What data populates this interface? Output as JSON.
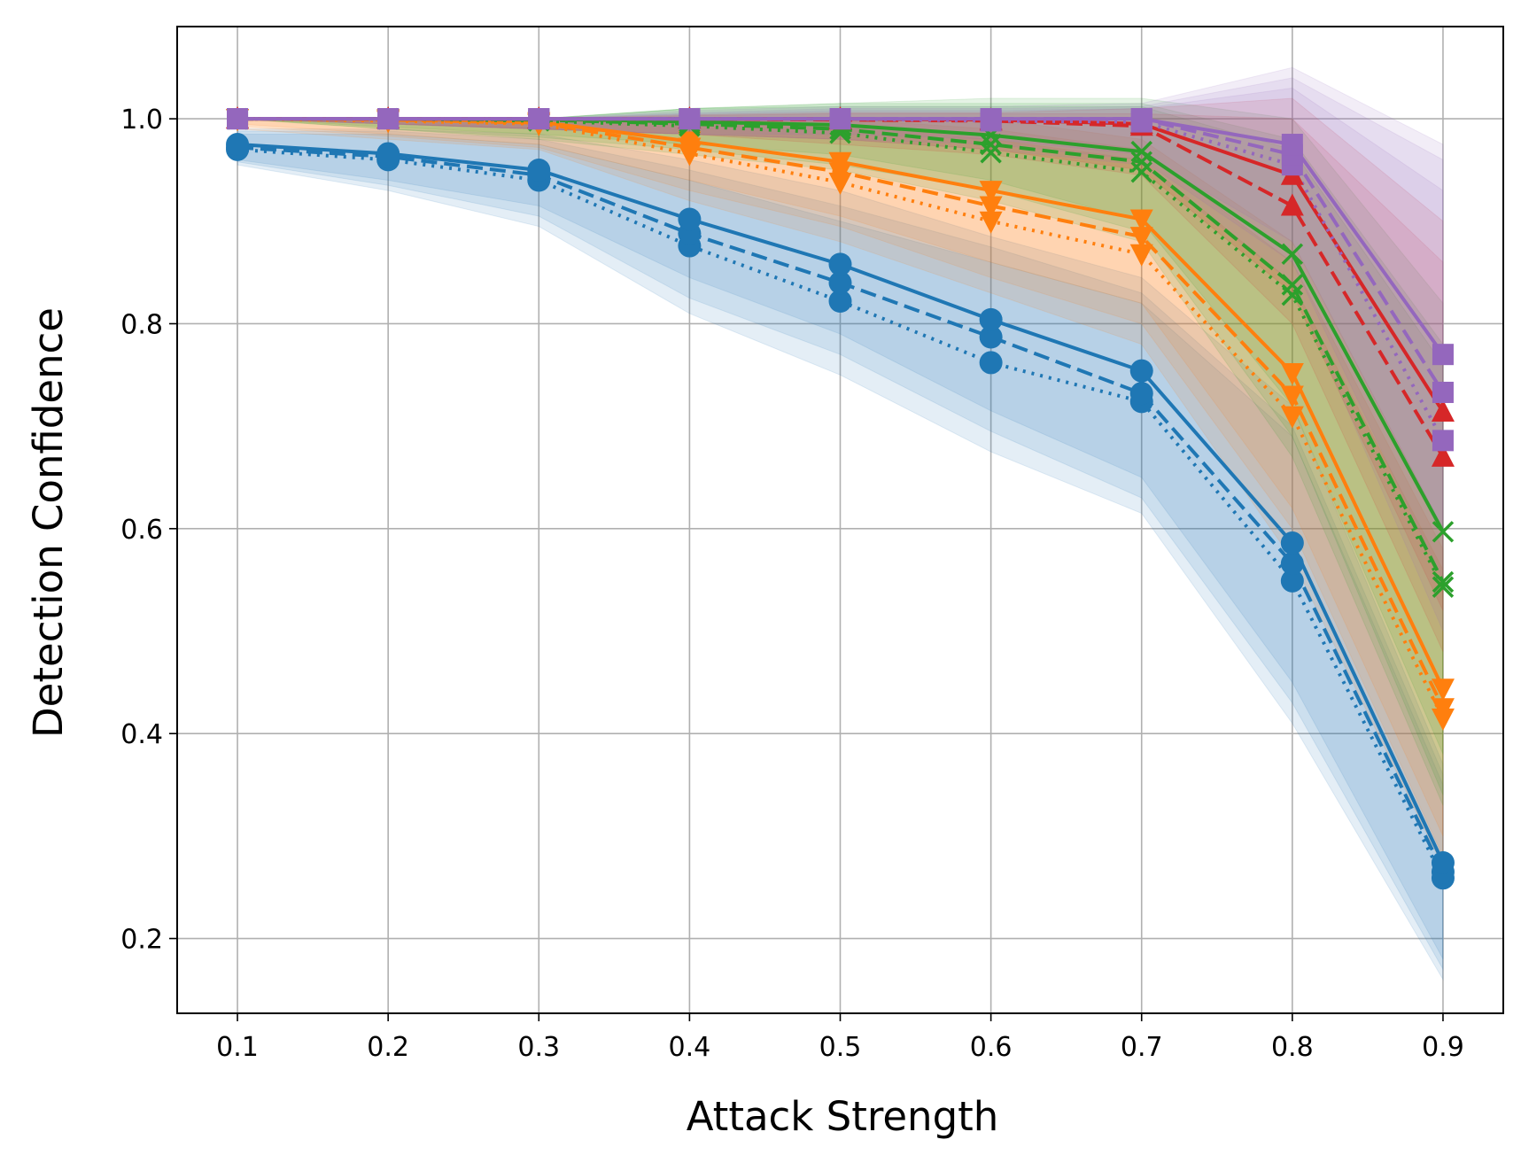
{
  "chart_data": {
    "type": "line",
    "title": "",
    "xlabel": "Attack Strength",
    "ylabel": "Detection Confidence",
    "x": [
      0.1,
      0.2,
      0.3,
      0.4,
      0.5,
      0.6,
      0.7,
      0.8,
      0.9
    ],
    "x_ticks": [
      "0.1",
      "0.2",
      "0.3",
      "0.4",
      "0.5",
      "0.6",
      "0.7",
      "0.8",
      "0.9"
    ],
    "y_ticks": [
      "0.2",
      "0.4",
      "0.6",
      "0.8",
      "1.0"
    ],
    "xlim": [
      0.06,
      0.94
    ],
    "ylim": [
      0.127,
      1.09
    ],
    "grid": true,
    "legend": "none",
    "colors": {
      "blue": "#1f77b4",
      "orange": "#ff7f0e",
      "green": "#2ca02c",
      "red": "#d62728",
      "purple": "#9467bd",
      "grid": "#b0b0b0"
    },
    "series": [
      {
        "color": "purple",
        "marker": "square",
        "linestyle": "solid",
        "values": [
          1.0,
          1.0,
          1.0,
          1.0,
          1.0,
          1.0,
          1.0,
          0.975,
          0.77
        ],
        "band": [
          [
            1.0,
            1.0
          ],
          [
            0.995,
            1.0
          ],
          [
            0.99,
            1.0
          ],
          [
            0.985,
            1.008
          ],
          [
            0.985,
            1.012
          ],
          [
            0.98,
            1.012
          ],
          [
            0.965,
            1.015
          ],
          [
            0.88,
            1.05
          ],
          [
            0.6,
            0.975
          ]
        ]
      },
      {
        "color": "purple",
        "marker": "square",
        "linestyle": "dashed",
        "values": [
          1.0,
          1.0,
          1.0,
          1.0,
          1.0,
          1.0,
          1.0,
          0.965,
          0.733
        ],
        "band": [
          [
            1.0,
            1.0
          ],
          [
            0.995,
            1.0
          ],
          [
            0.99,
            1.0
          ],
          [
            0.985,
            1.006
          ],
          [
            0.98,
            1.01
          ],
          [
            0.975,
            1.01
          ],
          [
            0.96,
            1.012
          ],
          [
            0.86,
            1.04
          ],
          [
            0.55,
            0.96
          ]
        ]
      },
      {
        "color": "purple",
        "marker": "square",
        "linestyle": "dotted",
        "values": [
          1.0,
          1.0,
          1.0,
          1.0,
          1.0,
          0.998,
          0.997,
          0.955,
          0.686
        ],
        "band": [
          [
            1.0,
            1.0
          ],
          [
            0.995,
            1.0
          ],
          [
            0.99,
            1.0
          ],
          [
            0.985,
            1.005
          ],
          [
            0.98,
            1.008
          ],
          [
            0.97,
            1.008
          ],
          [
            0.955,
            1.01
          ],
          [
            0.84,
            1.03
          ],
          [
            0.5,
            0.93
          ]
        ]
      },
      {
        "color": "red",
        "marker": "triangle-up",
        "linestyle": "solid",
        "values": [
          1.0,
          1.0,
          1.0,
          1.0,
          1.0,
          0.999,
          0.995,
          0.945,
          0.714
        ],
        "band": [
          [
            1.0,
            1.0
          ],
          [
            0.995,
            1.0
          ],
          [
            0.99,
            1.0
          ],
          [
            0.985,
            1.004
          ],
          [
            0.98,
            1.006
          ],
          [
            0.97,
            1.006
          ],
          [
            0.95,
            1.01
          ],
          [
            0.83,
            1.02
          ],
          [
            0.52,
            0.9
          ]
        ]
      },
      {
        "color": "red",
        "marker": "triangle-up",
        "linestyle": "dashed",
        "values": [
          1.0,
          1.0,
          1.0,
          1.0,
          0.999,
          0.998,
          0.993,
          0.915,
          0.67
        ],
        "band": [
          [
            1.0,
            1.0
          ],
          [
            0.995,
            1.0
          ],
          [
            0.99,
            1.0
          ],
          [
            0.985,
            1.003
          ],
          [
            0.975,
            1.005
          ],
          [
            0.965,
            1.005
          ],
          [
            0.945,
            1.005
          ],
          [
            0.8,
            1.0
          ],
          [
            0.48,
            0.86
          ]
        ]
      },
      {
        "color": "green",
        "marker": "x",
        "linestyle": "solid",
        "values": [
          1.0,
          1.0,
          1.0,
          0.997,
          0.994,
          0.984,
          0.968,
          0.868,
          0.597
        ],
        "band": [
          [
            1.0,
            1.0
          ],
          [
            0.992,
            1.0
          ],
          [
            0.985,
            1.0
          ],
          [
            0.975,
            1.01
          ],
          [
            0.965,
            1.015
          ],
          [
            0.94,
            1.02
          ],
          [
            0.9,
            1.02
          ],
          [
            0.72,
            1.0
          ],
          [
            0.38,
            0.82
          ]
        ]
      },
      {
        "color": "green",
        "marker": "x",
        "linestyle": "dashed",
        "values": [
          1.0,
          1.0,
          0.999,
          0.995,
          0.99,
          0.975,
          0.958,
          0.838,
          0.548
        ],
        "band": [
          [
            1.0,
            1.0
          ],
          [
            0.99,
            1.0
          ],
          [
            0.982,
            1.0
          ],
          [
            0.97,
            1.01
          ],
          [
            0.955,
            1.015
          ],
          [
            0.93,
            1.015
          ],
          [
            0.89,
            1.015
          ],
          [
            0.69,
            0.98
          ],
          [
            0.34,
            0.78
          ]
        ]
      },
      {
        "color": "green",
        "marker": "x",
        "linestyle": "dotted",
        "values": [
          1.0,
          1.0,
          0.998,
          0.993,
          0.986,
          0.967,
          0.948,
          0.828,
          0.543
        ],
        "band": [
          [
            1.0,
            1.0
          ],
          [
            0.99,
            1.0
          ],
          [
            0.98,
            1.0
          ],
          [
            0.965,
            1.01
          ],
          [
            0.95,
            1.012
          ],
          [
            0.92,
            1.012
          ],
          [
            0.88,
            1.012
          ],
          [
            0.67,
            0.97
          ],
          [
            0.33,
            0.76
          ]
        ]
      },
      {
        "color": "orange",
        "marker": "triangle-down",
        "linestyle": "solid",
        "values": [
          1.0,
          1.0,
          0.997,
          0.978,
          0.958,
          0.93,
          0.902,
          0.752,
          0.444
        ],
        "band": [
          [
            0.995,
            1.0
          ],
          [
            0.985,
            1.0
          ],
          [
            0.975,
            1.0
          ],
          [
            0.94,
            1.0
          ],
          [
            0.905,
            1.0
          ],
          [
            0.86,
            1.0
          ],
          [
            0.82,
            0.98
          ],
          [
            0.62,
            0.88
          ],
          [
            0.3,
            0.6
          ]
        ]
      },
      {
        "color": "orange",
        "marker": "triangle-down",
        "linestyle": "dashed",
        "values": [
          1.0,
          0.999,
          0.996,
          0.972,
          0.948,
          0.915,
          0.885,
          0.73,
          0.425
        ],
        "band": [
          [
            0.993,
            1.0
          ],
          [
            0.983,
            1.0
          ],
          [
            0.972,
            1.0
          ],
          [
            0.93,
            1.0
          ],
          [
            0.895,
            1.0
          ],
          [
            0.845,
            0.99
          ],
          [
            0.8,
            0.97
          ],
          [
            0.6,
            0.86
          ],
          [
            0.28,
            0.58
          ]
        ]
      },
      {
        "color": "orange",
        "marker": "triangle-down",
        "linestyle": "dotted",
        "values": [
          1.0,
          0.998,
          0.995,
          0.966,
          0.938,
          0.9,
          0.868,
          0.71,
          0.415
        ],
        "band": [
          [
            0.99,
            1.0
          ],
          [
            0.98,
            1.0
          ],
          [
            0.97,
            1.0
          ],
          [
            0.92,
            1.0
          ],
          [
            0.88,
            0.995
          ],
          [
            0.83,
            0.98
          ],
          [
            0.78,
            0.96
          ],
          [
            0.57,
            0.84
          ],
          [
            0.27,
            0.56
          ]
        ]
      },
      {
        "color": "blue",
        "marker": "circle",
        "linestyle": "solid",
        "values": [
          0.975,
          0.966,
          0.95,
          0.902,
          0.858,
          0.804,
          0.754,
          0.586,
          0.274
        ],
        "band": [
          [
            0.96,
            0.99
          ],
          [
            0.94,
            0.99
          ],
          [
            0.915,
            0.985
          ],
          [
            0.845,
            0.96
          ],
          [
            0.79,
            0.93
          ],
          [
            0.715,
            0.885
          ],
          [
            0.65,
            0.845
          ],
          [
            0.45,
            0.72
          ],
          [
            0.18,
            0.37
          ]
        ]
      },
      {
        "color": "blue",
        "marker": "circle",
        "linestyle": "dashed",
        "values": [
          0.972,
          0.963,
          0.945,
          0.888,
          0.84,
          0.787,
          0.732,
          0.566,
          0.265
        ],
        "band": [
          [
            0.958,
            0.988
          ],
          [
            0.935,
            0.988
          ],
          [
            0.905,
            0.98
          ],
          [
            0.825,
            0.95
          ],
          [
            0.77,
            0.915
          ],
          [
            0.695,
            0.875
          ],
          [
            0.63,
            0.83
          ],
          [
            0.43,
            0.7
          ],
          [
            0.17,
            0.36
          ]
        ]
      },
      {
        "color": "blue",
        "marker": "circle",
        "linestyle": "dotted",
        "values": [
          0.97,
          0.96,
          0.94,
          0.876,
          0.822,
          0.762,
          0.724,
          0.549,
          0.259
        ],
        "band": [
          [
            0.955,
            0.985
          ],
          [
            0.93,
            0.985
          ],
          [
            0.895,
            0.975
          ],
          [
            0.81,
            0.94
          ],
          [
            0.75,
            0.9
          ],
          [
            0.675,
            0.86
          ],
          [
            0.615,
            0.82
          ],
          [
            0.41,
            0.69
          ],
          [
            0.16,
            0.35
          ]
        ]
      }
    ]
  }
}
